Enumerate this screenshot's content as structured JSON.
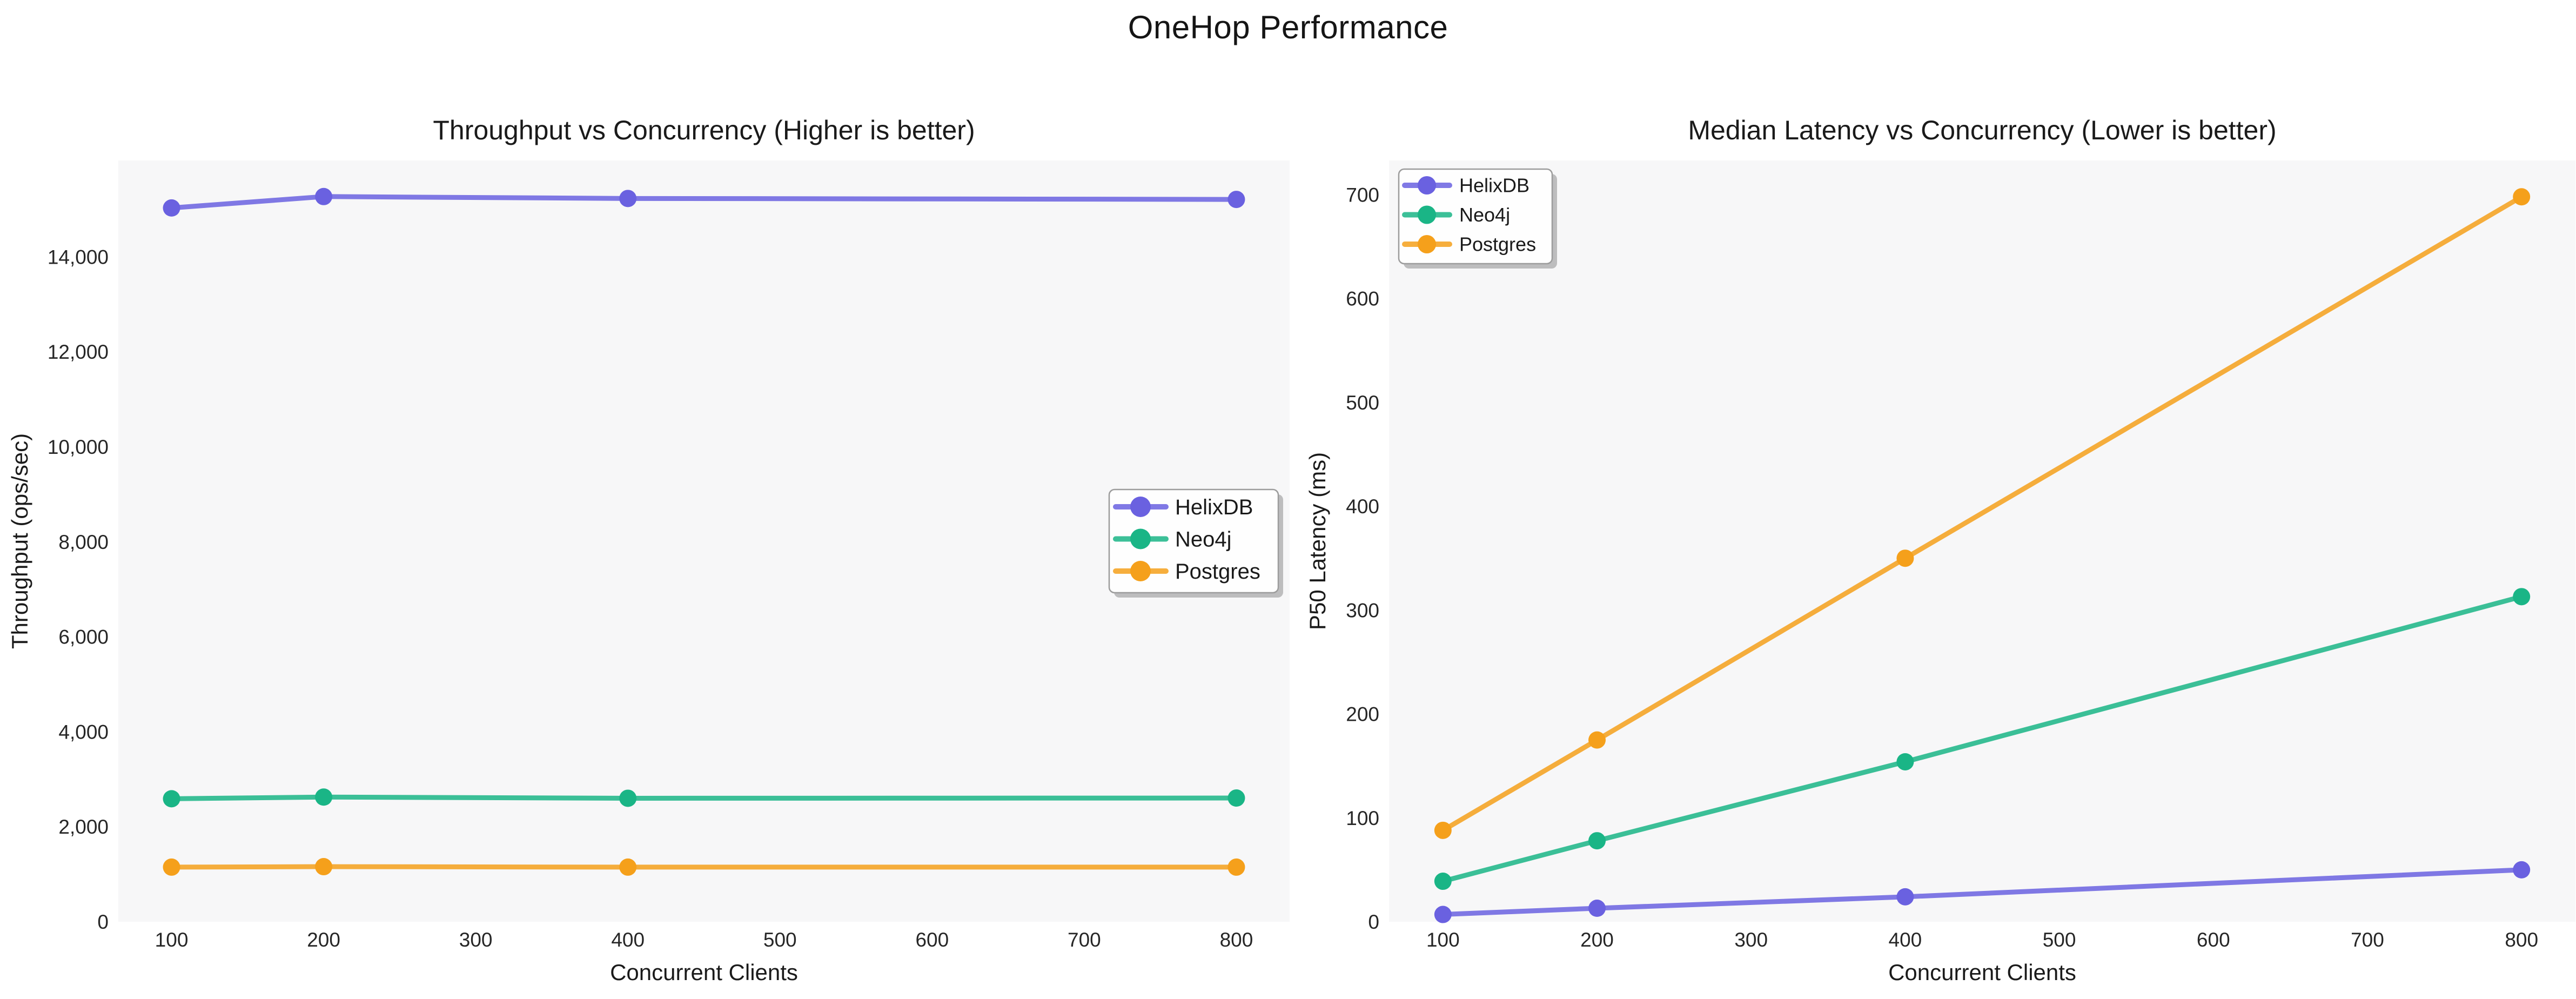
{
  "figure_title": "OneHop Performance",
  "chart_data": [
    {
      "type": "line",
      "title": "Throughput vs Concurrency (Higher is better)",
      "xlabel": "Concurrent Clients",
      "ylabel": "Throughput (ops/sec)",
      "x": [
        100,
        200,
        400,
        800
      ],
      "series": [
        {
          "name": "HelixDB",
          "color": "#6A61E0",
          "values": [
            15030,
            15270,
            15230,
            15210
          ]
        },
        {
          "name": "Neo4j",
          "color": "#1AB586",
          "values": [
            2590,
            2625,
            2600,
            2605
          ]
        },
        {
          "name": "Postgres",
          "color": "#F5A01B",
          "values": [
            1150,
            1160,
            1150,
            1150
          ]
        }
      ],
      "xticks": {
        "values": [
          100,
          200,
          300,
          400,
          500,
          600,
          700,
          800
        ],
        "labels": [
          "100",
          "200",
          "300",
          "400",
          "500",
          "600",
          "700",
          "800"
        ]
      },
      "yticks": {
        "values": [
          0,
          2000,
          4000,
          6000,
          8000,
          10000,
          12000,
          14000
        ],
        "labels": [
          "0",
          "2,000",
          "4,000",
          "6,000",
          "8,000",
          "10,000",
          "12,000",
          "14,000"
        ]
      },
      "xlim": [
        65,
        835
      ],
      "ylim": [
        0,
        16030
      ],
      "grid": false,
      "legend_position": "center-right",
      "plot_bg": "#f7f7f8",
      "text_color": "#262626"
    },
    {
      "type": "line",
      "title": "Median Latency vs Concurrency (Lower is better)",
      "xlabel": "Concurrent Clients",
      "ylabel": "P50 Latency (ms)",
      "x": [
        100,
        200,
        400,
        800
      ],
      "series": [
        {
          "name": "HelixDB",
          "color": "#6A61E0",
          "values": [
            7,
            13,
            24,
            50
          ]
        },
        {
          "name": "Neo4j",
          "color": "#1AB586",
          "values": [
            39,
            78,
            154,
            313
          ]
        },
        {
          "name": "Postgres",
          "color": "#F5A01B",
          "values": [
            88,
            175,
            350,
            698
          ]
        }
      ],
      "xticks": {
        "values": [
          100,
          200,
          300,
          400,
          500,
          600,
          700,
          800
        ],
        "labels": [
          "100",
          "200",
          "300",
          "400",
          "500",
          "600",
          "700",
          "800"
        ]
      },
      "yticks": {
        "values": [
          0,
          100,
          200,
          300,
          400,
          500,
          600,
          700
        ],
        "labels": [
          "0",
          "100",
          "200",
          "300",
          "400",
          "500",
          "600",
          "700"
        ]
      },
      "xlim": [
        65,
        835
      ],
      "ylim": [
        0,
        733
      ],
      "grid": false,
      "legend_position": "upper-left",
      "plot_bg": "#f7f7f8",
      "text_color": "#262626"
    }
  ]
}
